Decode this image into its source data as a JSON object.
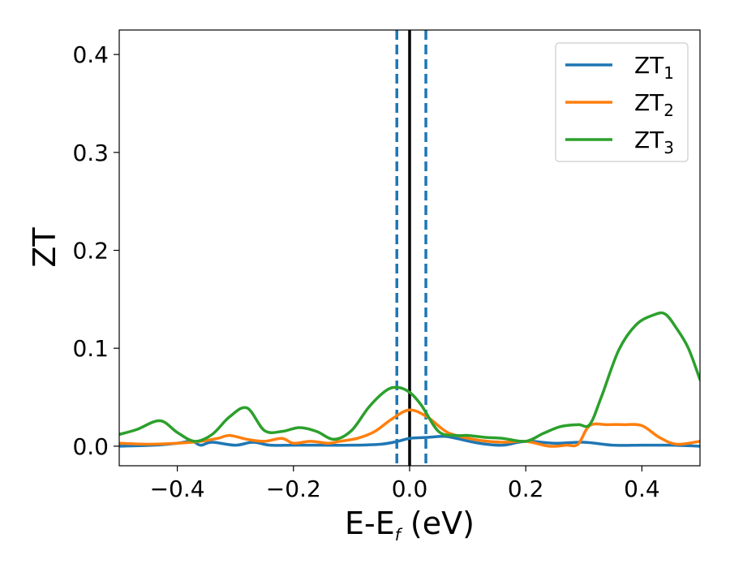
{
  "chart_data": {
    "type": "line",
    "xlabel": "E-E",
    "xlabel_sub": "f",
    "xlabel_unit": " (eV)",
    "ylabel": "ZT",
    "xlim": [
      -0.5,
      0.5
    ],
    "ylim": [
      -0.02,
      0.425
    ],
    "xticks": [
      -0.4,
      -0.2,
      0.0,
      0.2,
      0.4
    ],
    "xtick_labels": [
      "−0.4",
      "−0.2",
      "0.0",
      "0.2",
      "0.4"
    ],
    "yticks": [
      0.0,
      0.1,
      0.2,
      0.3,
      0.4
    ],
    "ytick_labels": [
      "0.0",
      "0.1",
      "0.2",
      "0.3",
      "0.4"
    ],
    "grid": false,
    "legend_position": "top-right",
    "vertical_lines": [
      {
        "x": 0.0,
        "style": "solid",
        "color": "#000000"
      },
      {
        "x": -0.022,
        "style": "dashed",
        "color": "#1f77b4"
      },
      {
        "x": 0.028,
        "style": "dashed",
        "color": "#1f77b4"
      }
    ],
    "series": [
      {
        "name": "ZT",
        "name_sub": "1",
        "color": "#1f77b4",
        "x": [
          -0.5,
          -0.44,
          -0.4,
          -0.375,
          -0.36,
          -0.34,
          -0.3,
          -0.27,
          -0.24,
          -0.2,
          -0.15,
          -0.1,
          -0.05,
          -0.02,
          0.0,
          0.03,
          0.06,
          0.08,
          0.12,
          0.16,
          0.2,
          0.25,
          0.3,
          0.35,
          0.4,
          0.45,
          0.5
        ],
        "y": [
          0.0,
          0.001,
          0.003,
          0.005,
          0.001,
          0.004,
          0.001,
          0.004,
          0.001,
          0.001,
          0.001,
          0.001,
          0.002,
          0.005,
          0.008,
          0.009,
          0.01,
          0.008,
          0.003,
          0.001,
          0.005,
          0.003,
          0.004,
          0.001,
          0.001,
          0.001,
          0.0
        ]
      },
      {
        "name": "ZT",
        "name_sub": "2",
        "color": "#ff7f0e",
        "x": [
          -0.5,
          -0.45,
          -0.4,
          -0.36,
          -0.33,
          -0.31,
          -0.28,
          -0.25,
          -0.22,
          -0.2,
          -0.17,
          -0.14,
          -0.12,
          -0.09,
          -0.06,
          -0.03,
          0.0,
          0.03,
          0.06,
          0.08,
          0.12,
          0.16,
          0.2,
          0.24,
          0.27,
          0.29,
          0.31,
          0.34,
          0.37,
          0.4,
          0.43,
          0.46,
          0.5
        ],
        "y": [
          0.003,
          0.002,
          0.003,
          0.005,
          0.008,
          0.011,
          0.007,
          0.005,
          0.008,
          0.003,
          0.005,
          0.003,
          0.005,
          0.008,
          0.015,
          0.028,
          0.037,
          0.03,
          0.016,
          0.011,
          0.006,
          0.004,
          0.005,
          0.0,
          0.001,
          0.002,
          0.021,
          0.022,
          0.022,
          0.021,
          0.009,
          0.002,
          0.005
        ]
      },
      {
        "name": "ZT",
        "name_sub": "3",
        "color": "#2ca02c",
        "x": [
          -0.5,
          -0.47,
          -0.43,
          -0.4,
          -0.37,
          -0.34,
          -0.31,
          -0.28,
          -0.25,
          -0.22,
          -0.19,
          -0.16,
          -0.13,
          -0.1,
          -0.07,
          -0.04,
          -0.02,
          0.0,
          0.02,
          0.05,
          0.08,
          0.1,
          0.13,
          0.16,
          0.2,
          0.23,
          0.26,
          0.29,
          0.31,
          0.33,
          0.36,
          0.39,
          0.42,
          0.44,
          0.46,
          0.48,
          0.5
        ],
        "y": [
          0.012,
          0.017,
          0.026,
          0.014,
          0.005,
          0.012,
          0.03,
          0.039,
          0.016,
          0.015,
          0.019,
          0.015,
          0.007,
          0.016,
          0.04,
          0.057,
          0.06,
          0.055,
          0.042,
          0.015,
          0.011,
          0.011,
          0.009,
          0.008,
          0.005,
          0.013,
          0.02,
          0.022,
          0.022,
          0.05,
          0.098,
          0.124,
          0.134,
          0.135,
          0.12,
          0.1,
          0.068
        ]
      }
    ]
  }
}
